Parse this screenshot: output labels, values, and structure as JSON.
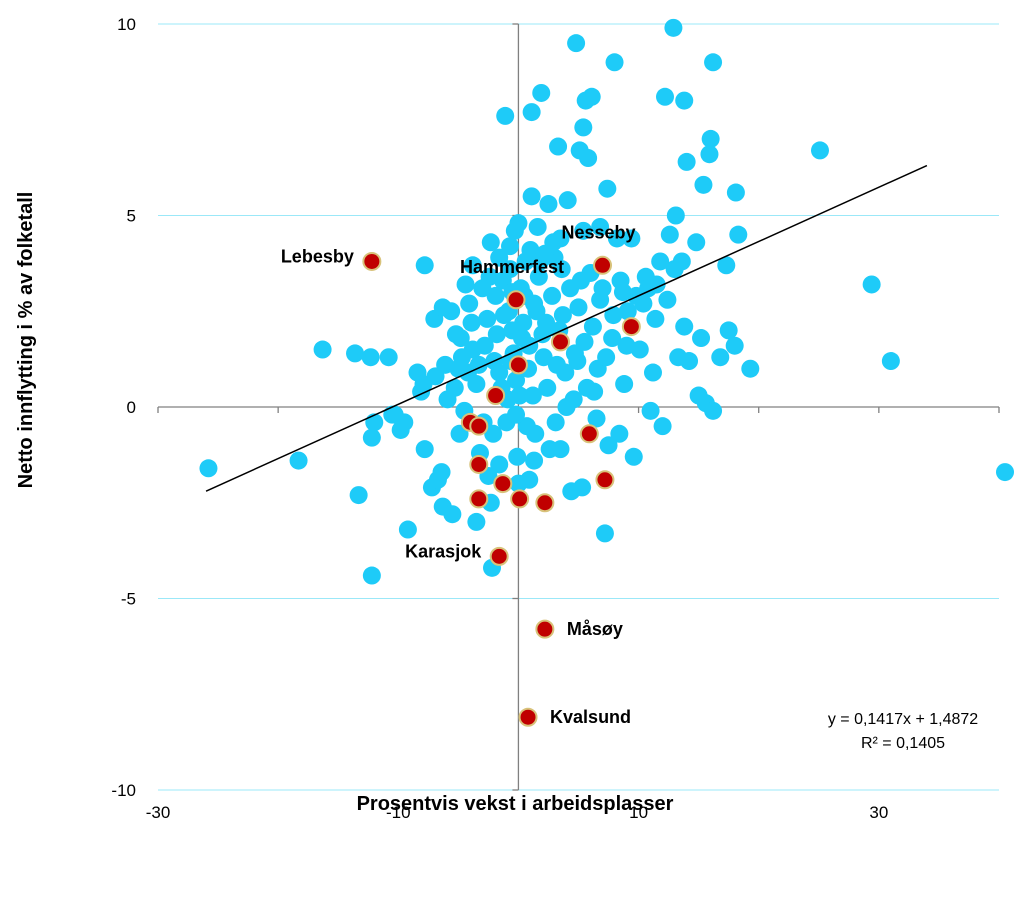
{
  "chart_data": {
    "type": "scatter",
    "xlabel": "Prosentvis vekst i arbeidsplasser",
    "ylabel": "Netto innflytting i % av folketall",
    "xlim": [
      -30,
      40
    ],
    "ylim": [
      -10,
      10
    ],
    "x_ticks": [
      "-30",
      "-10",
      "10",
      "30"
    ],
    "y_ticks": [
      "10",
      "5",
      "0",
      "-5",
      "-10"
    ],
    "grid": "horizontal",
    "colors": {
      "other": "#1ecbf8",
      "highlight": "#c00000",
      "highlight_edge": "#d8c27a",
      "grid": "#9be8f8",
      "axis": "#808080",
      "trend": "#000000"
    },
    "trendline": {
      "slope": 0.1417,
      "intercept": 1.4872,
      "x_range": [
        -26,
        34
      ],
      "equation": "y = 0,1417x + 1,4872",
      "r_squared": "R² = 0,1405"
    },
    "series": [
      {
        "values": [
          [
            -25.8,
            -1.6
          ],
          [
            -18.3,
            -1.4
          ],
          [
            -16.3,
            1.5
          ],
          [
            -13.6,
            1.4
          ],
          [
            -13.3,
            -2.3
          ],
          [
            -12.3,
            1.3
          ],
          [
            -12.2,
            -0.8
          ],
          [
            -12.2,
            -4.4
          ],
          [
            -12.0,
            -0.4
          ],
          [
            -10.8,
            1.3
          ],
          [
            -10.5,
            -0.2
          ],
          [
            -10.3,
            -0.2
          ],
          [
            -9.8,
            -0.6
          ],
          [
            -9.5,
            -0.4
          ],
          [
            -9.2,
            -3.2
          ],
          [
            -8.4,
            0.9
          ],
          [
            -8.1,
            0.4
          ],
          [
            -7.8,
            3.7
          ],
          [
            -7.8,
            -1.1
          ],
          [
            -7.9,
            0.6
          ],
          [
            -7.2,
            -2.1
          ],
          [
            -7.0,
            2.3
          ],
          [
            -6.7,
            -1.9
          ],
          [
            -6.4,
            -1.7
          ],
          [
            -6.3,
            2.6
          ],
          [
            -6.3,
            -2.6
          ],
          [
            -5.6,
            2.5
          ],
          [
            -5.5,
            -2.8
          ],
          [
            -5.2,
            1.9
          ],
          [
            -4.9,
            -0.7
          ],
          [
            -4.7,
            1.3
          ],
          [
            -4.5,
            -0.1
          ],
          [
            -4.4,
            3.2
          ],
          [
            -4.1,
            2.7
          ],
          [
            -3.8,
            3.7
          ],
          [
            -3.8,
            1.5
          ],
          [
            -3.5,
            -3.0
          ],
          [
            -3.5,
            0.6
          ],
          [
            -3.2,
            -1.2
          ],
          [
            -2.9,
            -0.4
          ],
          [
            -2.6,
            2.3
          ],
          [
            -2.3,
            4.3
          ],
          [
            -2.3,
            -2.5
          ],
          [
            -2.2,
            -4.2
          ],
          [
            -2.1,
            -0.7
          ],
          [
            -1.8,
            1.9
          ],
          [
            -1.6,
            -1.5
          ],
          [
            -1.6,
            0.9
          ],
          [
            -1.3,
            3.3
          ],
          [
            -1.1,
            7.6
          ],
          [
            -1.0,
            -0.4
          ],
          [
            -0.8,
            2.5
          ],
          [
            -0.7,
            3.6
          ],
          [
            -0.5,
            2.0
          ],
          [
            -0.4,
            1.4
          ],
          [
            -0.3,
            4.6
          ],
          [
            -0.2,
            0.7
          ],
          [
            -0.1,
            -1.3
          ],
          [
            0.0,
            4.8
          ],
          [
            0.0,
            -2.0
          ],
          [
            0.2,
            3.1
          ],
          [
            0.3,
            1.8
          ],
          [
            0.5,
            2.9
          ],
          [
            0.7,
            -0.5
          ],
          [
            0.8,
            1.0
          ],
          [
            1.0,
            4.1
          ],
          [
            1.1,
            7.7
          ],
          [
            1.2,
            0.3
          ],
          [
            1.3,
            -1.4
          ],
          [
            1.5,
            2.5
          ],
          [
            1.6,
            4.7
          ],
          [
            1.7,
            3.4
          ],
          [
            1.9,
            8.2
          ],
          [
            2.1,
            1.3
          ],
          [
            2.3,
            2.2
          ],
          [
            2.5,
            5.3
          ],
          [
            2.6,
            -1.1
          ],
          [
            2.9,
            4.3
          ],
          [
            3.1,
            -0.4
          ],
          [
            3.3,
            6.8
          ],
          [
            3.4,
            2.0
          ],
          [
            3.5,
            -1.1
          ],
          [
            3.6,
            3.6
          ],
          [
            3.9,
            0.9
          ],
          [
            4.1,
            5.4
          ],
          [
            4.4,
            -2.2
          ],
          [
            4.6,
            0.2
          ],
          [
            4.8,
            9.5
          ],
          [
            5.1,
            6.7
          ],
          [
            5.3,
            -2.1
          ],
          [
            5.4,
            4.6
          ],
          [
            5.4,
            7.3
          ],
          [
            5.5,
            1.7
          ],
          [
            5.6,
            8.0
          ],
          [
            5.8,
            6.5
          ],
          [
            6.0,
            3.5
          ],
          [
            6.1,
            8.1
          ],
          [
            6.3,
            0.4
          ],
          [
            6.5,
            -0.3
          ],
          [
            6.8,
            2.8
          ],
          [
            7.2,
            -3.3
          ],
          [
            7.4,
            5.7
          ],
          [
            7.5,
            -1.0
          ],
          [
            7.8,
            1.8
          ],
          [
            8.0,
            9.0
          ],
          [
            8.2,
            4.4
          ],
          [
            8.4,
            -0.7
          ],
          [
            8.7,
            3.0
          ],
          [
            8.8,
            0.6
          ],
          [
            9.1,
            2.5
          ],
          [
            9.4,
            4.4
          ],
          [
            9.6,
            -1.3
          ],
          [
            10.1,
            1.5
          ],
          [
            10.6,
            3.4
          ],
          [
            11.0,
            -0.1
          ],
          [
            11.2,
            0.9
          ],
          [
            11.4,
            2.3
          ],
          [
            11.8,
            3.8
          ],
          [
            12.0,
            -0.5
          ],
          [
            12.2,
            8.1
          ],
          [
            12.6,
            4.5
          ],
          [
            12.9,
            9.9
          ],
          [
            13.1,
            5.0
          ],
          [
            13.3,
            1.3
          ],
          [
            13.6,
            3.8
          ],
          [
            13.8,
            2.1
          ],
          [
            13.8,
            8.0
          ],
          [
            14.0,
            6.4
          ],
          [
            14.2,
            1.2
          ],
          [
            14.8,
            4.3
          ],
          [
            15.0,
            0.3
          ],
          [
            15.2,
            1.8
          ],
          [
            15.4,
            5.8
          ],
          [
            15.6,
            0.1
          ],
          [
            15.9,
            6.6
          ],
          [
            16.0,
            7.0
          ],
          [
            16.2,
            9.0
          ],
          [
            16.2,
            -0.1
          ],
          [
            16.8,
            1.3
          ],
          [
            17.3,
            3.7
          ],
          [
            17.5,
            2.0
          ],
          [
            18.0,
            1.6
          ],
          [
            18.1,
            5.6
          ],
          [
            18.3,
            4.5
          ],
          [
            19.3,
            1.0
          ],
          [
            25.1,
            6.7
          ],
          [
            29.4,
            3.2
          ],
          [
            31.0,
            1.2
          ],
          [
            40.5,
            -1.7
          ],
          [
            -6.9,
            0.8
          ],
          [
            -6.1,
            1.1
          ],
          [
            -5.9,
            0.2
          ],
          [
            -5.3,
            0.5
          ],
          [
            -4.8,
            1.8
          ],
          [
            -4.2,
            0.9
          ],
          [
            -3.9,
            2.2
          ],
          [
            -3.3,
            1.1
          ],
          [
            -2.8,
            1.6
          ],
          [
            -2.4,
            3.4
          ],
          [
            -2.0,
            1.2
          ],
          [
            -1.9,
            2.9
          ],
          [
            -1.4,
            0.5
          ],
          [
            -1.2,
            2.4
          ],
          [
            -0.9,
            0.2
          ],
          [
            -0.6,
            1.2
          ],
          [
            -0.5,
            3.0
          ],
          [
            -0.2,
            -0.2
          ],
          [
            0.4,
            2.2
          ],
          [
            0.6,
            3.8
          ],
          [
            0.9,
            1.6
          ],
          [
            1.3,
            2.7
          ],
          [
            1.4,
            -0.7
          ],
          [
            1.8,
            3.8
          ],
          [
            2.0,
            1.9
          ],
          [
            2.4,
            0.5
          ],
          [
            2.8,
            2.9
          ],
          [
            3.0,
            3.9
          ],
          [
            3.2,
            1.1
          ],
          [
            3.7,
            2.4
          ],
          [
            4.0,
            0.0
          ],
          [
            4.3,
            3.1
          ],
          [
            4.7,
            1.4
          ],
          [
            5.0,
            2.6
          ],
          [
            5.2,
            3.3
          ],
          [
            5.7,
            0.5
          ],
          [
            6.2,
            2.1
          ],
          [
            6.6,
            1.0
          ],
          [
            7.0,
            3.1
          ],
          [
            7.3,
            1.3
          ],
          [
            7.9,
            2.4
          ],
          [
            8.5,
            3.3
          ],
          [
            9.0,
            1.6
          ],
          [
            9.8,
            2.9
          ],
          [
            10.4,
            2.7
          ],
          [
            10.8,
            3.1
          ],
          [
            11.5,
            3.2
          ],
          [
            12.4,
            2.8
          ],
          [
            13.0,
            3.6
          ],
          [
            -0.7,
            4.2
          ],
          [
            -1.6,
            3.9
          ],
          [
            1.1,
            5.5
          ],
          [
            2.2,
            4.0
          ],
          [
            -3.0,
            3.1
          ],
          [
            0.1,
            0.3
          ],
          [
            4.9,
            1.2
          ],
          [
            -5.0,
            1.0
          ],
          [
            3.5,
            4.4
          ],
          [
            -2.5,
            -1.8
          ],
          [
            6.8,
            4.7
          ],
          [
            0.9,
            -1.9
          ]
        ]
      },
      {
        "highlight": true,
        "values": [
          [
            -12.2,
            3.8
          ],
          [
            7.0,
            3.7
          ],
          [
            -0.2,
            2.8
          ],
          [
            3.5,
            1.7
          ],
          [
            0.0,
            1.1
          ],
          [
            9.4,
            2.1
          ],
          [
            -4.0,
            -0.4
          ],
          [
            -1.9,
            0.3
          ],
          [
            -3.3,
            -0.5
          ],
          [
            5.9,
            -0.7
          ],
          [
            -3.3,
            -1.5
          ],
          [
            7.2,
            -1.9
          ],
          [
            -3.3,
            -2.4
          ],
          [
            -1.3,
            -2.0
          ],
          [
            0.1,
            -2.4
          ],
          [
            2.2,
            -2.5
          ],
          [
            -1.6,
            -3.9
          ],
          [
            2.2,
            -5.8
          ],
          [
            0.8,
            -8.1
          ]
        ]
      }
    ],
    "annotations": [
      {
        "text": "Lebesby",
        "x": -12.2,
        "y": 3.8,
        "anchor": "left"
      },
      {
        "text": "Nesseby",
        "x": 7.0,
        "y": 3.7,
        "anchor": "above"
      },
      {
        "text": "Hammerfest",
        "x": -0.2,
        "y": 2.8,
        "anchor": "above"
      },
      {
        "text": "Karasjok",
        "x": -1.6,
        "y": -3.9,
        "anchor": "left"
      },
      {
        "text": "Måsøy",
        "x": 2.2,
        "y": -5.8,
        "anchor": "right"
      },
      {
        "text": "Kvalsund",
        "x": 0.8,
        "y": -8.1,
        "anchor": "right"
      }
    ]
  }
}
